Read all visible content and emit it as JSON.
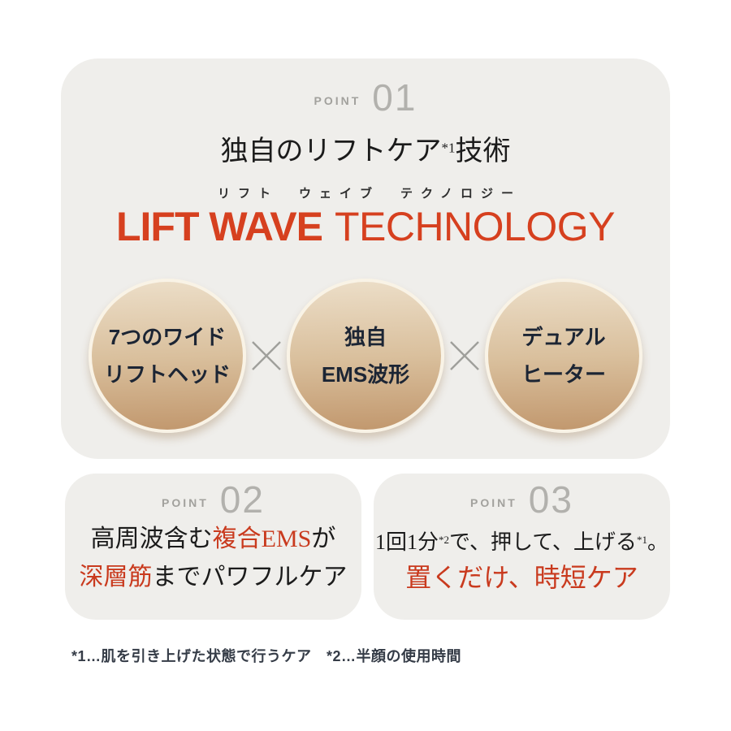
{
  "colors": {
    "page_bg": "#ffffff",
    "card_bg": "#efeeeb",
    "accent_red": "#d6401f",
    "serif_red": "#c93a1e",
    "point_label_gray": "#a2a19d",
    "point_number_gray": "#b2b1ad",
    "circle_text_navy": "#1c2534",
    "circle_gradient_top": "#ecdec8",
    "circle_gradient_bottom": "#c1976d",
    "multiply_gray": "#9f9f9b",
    "footnote_color": "#353c47"
  },
  "point1": {
    "label": "POINT",
    "number": "01",
    "title": {
      "pre": "独自のリフトケア",
      "sup": "*1",
      "post": "技術"
    },
    "ruby": "リフト　ウェイブ　テクノロジー",
    "tech": {
      "bold": "LIFT WAVE",
      "light": "TECHNOLOGY"
    },
    "circles": [
      {
        "line1": "7つのワイド",
        "line2": "リフトヘッド"
      },
      {
        "line1": "独自",
        "line2": "EMS波形"
      },
      {
        "line1": "デュアル",
        "line2": "ヒーター"
      }
    ],
    "multiply": "×"
  },
  "point2": {
    "label": "POINT",
    "number": "02",
    "line1": [
      {
        "t": "高周波含む"
      },
      {
        "t": "複合EMS",
        "red": true
      },
      {
        "t": "が"
      }
    ],
    "line2": [
      {
        "t": "深層筋",
        "red": true
      },
      {
        "t": "までパワフルケア"
      }
    ]
  },
  "point3": {
    "label": "POINT",
    "number": "03",
    "line1": [
      {
        "t": "1回1分"
      },
      {
        "t": "*2",
        "sup": true
      },
      {
        "t": "で、押して、上げる"
      },
      {
        "t": "*1",
        "sup": true
      },
      {
        "t": "。"
      }
    ],
    "line2": "置くだけ、時短ケア"
  },
  "footnote": "*1…肌を引き上げた状態で行うケア　*2…半顔の使用時間"
}
